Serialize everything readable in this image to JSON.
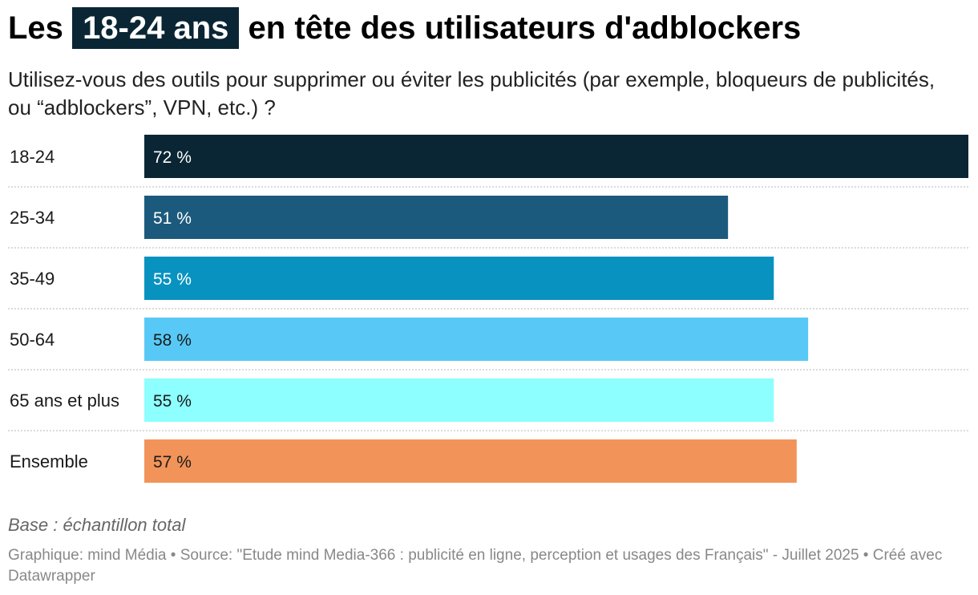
{
  "header": {
    "title_before": "Les",
    "title_highlight": "18-24 ans",
    "title_after": "en tête des utilisateurs d'adblockers",
    "subtitle": "Utilisez-vous des outils pour supprimer ou éviter les publicités (par exemple, bloqueurs de publicités, ou “adblockers”, VPN, etc.) ?"
  },
  "chart_data": {
    "type": "bar",
    "orientation": "horizontal",
    "categories": [
      "18-24",
      "25-34",
      "35-49",
      "50-64",
      "65 ans et plus",
      "Ensemble"
    ],
    "values": [
      72,
      51,
      55,
      58,
      55,
      57
    ],
    "value_labels": [
      "72 %",
      "51 %",
      "55 %",
      "58 %",
      "55 %",
      "57 %"
    ],
    "colors": [
      "#0a2634",
      "#1b5a7c",
      "#0892c0",
      "#58c9f6",
      "#8cfffe",
      "#f2945a"
    ],
    "label_colors": [
      "#ffffff",
      "#ffffff",
      "#ffffff",
      "#1a1a1a",
      "#1a1a1a",
      "#1a1a1a"
    ],
    "xlim": [
      0,
      72
    ],
    "grid": false
  },
  "notes": "Base : échantillon total",
  "footer": "Graphique: mind Média • Source: \"Etude mind Media-366 : publicité en ligne, perception et usages des Français\" - Juillet 2025 • Créé avec Datawrapper"
}
